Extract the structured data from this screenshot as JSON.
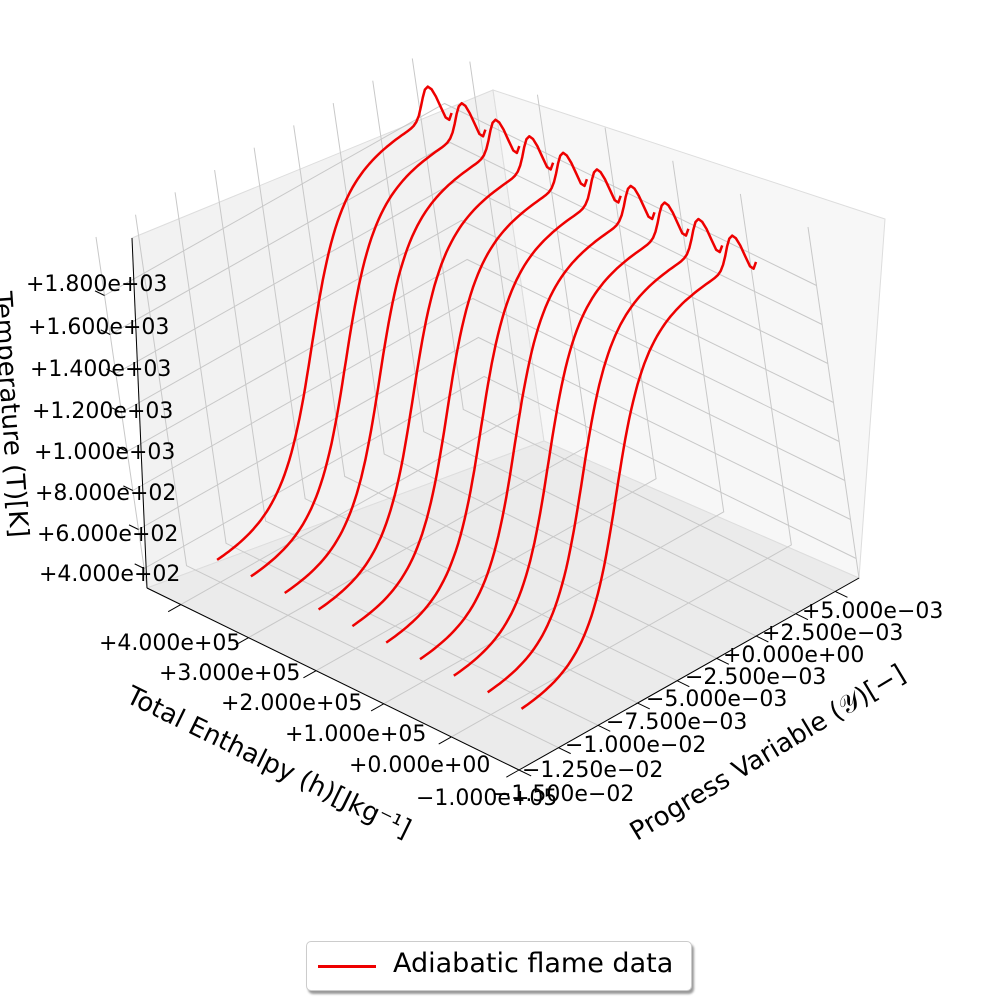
{
  "chart_data": {
    "type": "line",
    "projection": "3d",
    "xlabel": "Total Enthalpy $(h)[J kg^{-1}]$",
    "ylabel": "Progress Variable $(\\mathcal{Y})[-]$",
    "zlabel": "Temperature $(T)[K]$",
    "xlabel_display": "Total Enthalpy (h)[Jkg⁻¹]",
    "ylabel_display": "Progress Variable (𝒴)[−]",
    "zlabel_display": "Temperature (T)[K]",
    "xlim": [
      -100000,
      450000
    ],
    "ylim": [
      -0.015,
      0.0065
    ],
    "zlim": [
      300,
      2100
    ],
    "x_ticks": [
      "−1.000e+05",
      "+0.000e+00",
      "+1.000e+05",
      "+2.000e+05",
      "+3.000e+05",
      "+4.000e+05"
    ],
    "y_ticks": [
      "−1.500e−02",
      "−1.250e−02",
      "−1.000e−02",
      "−7.500e−03",
      "−5.000e−03",
      "−2.500e−03",
      "+0.000e+00",
      "+2.500e−03",
      "+5.000e−03"
    ],
    "z_ticks": [
      "+4.000e+02",
      "+6.000e+02",
      "+8.000e+02",
      "+1.000e+03",
      "+1.200e+03",
      "+1.400e+03",
      "+1.600e+03",
      "+1.800e+03"
    ],
    "grid": true,
    "legend": {
      "entries": [
        "Adiabatic flame data"
      ],
      "position": "bottom-center"
    },
    "series": [
      {
        "name": "Adiabatic flame data",
        "color": "#ee0000",
        "profile": "T rises sigmoidally from ~400 K to a peak of ~2000 K then settles to ~1850 K as Y goes from about -0.0125 to 0.005",
        "enthalpies": [
          400000,
          350000,
          300000,
          250000,
          200000,
          150000,
          100000,
          50000,
          0,
          -50000
        ]
      }
    ]
  },
  "legend": {
    "label": "Adiabatic flame data"
  }
}
